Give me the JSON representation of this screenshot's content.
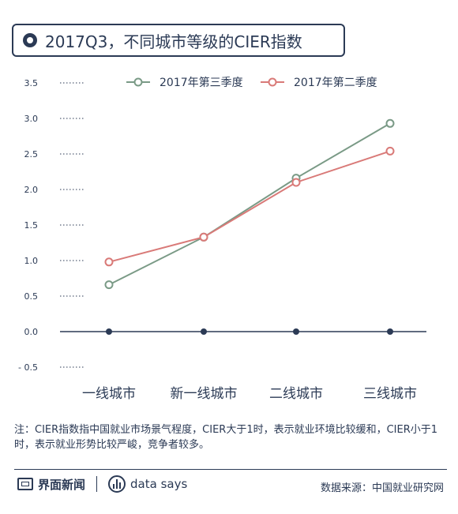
{
  "header": {
    "title": "2017Q3，不同城市等级的CIER指数"
  },
  "chart_data": {
    "type": "line",
    "categories": [
      "一线城市",
      "新一线城市",
      "二线城市",
      "三线城市"
    ],
    "series": [
      {
        "name": "2017年第三季度",
        "color": "#7a9a86",
        "values": [
          0.66,
          1.33,
          2.16,
          2.93
        ]
      },
      {
        "name": "2017年第二季度",
        "color": "#d97a78",
        "values": [
          0.98,
          1.33,
          2.1,
          2.54
        ]
      }
    ],
    "y_ticks": [
      "3.5",
      "3.0",
      "2.5",
      "2.0",
      "1.5",
      "1.0",
      "0.5",
      "0.0",
      "- 0.5"
    ],
    "y_tick_values": [
      3.5,
      3.0,
      2.5,
      2.0,
      1.5,
      1.0,
      0.5,
      0.0,
      -0.5
    ],
    "ylim": [
      -0.5,
      3.5
    ],
    "axis_color": "#2b3a55",
    "legend_position": "top"
  },
  "note": "注：CIER指数指中国就业市场景气程度，CIER大于1时，表示就业环境比较缓和，CIER小于1时，表示就业形势比较严峻，竞争者较多。",
  "footer": {
    "brand": "界面新闻",
    "brand_icon": "jiemian-logo-icon",
    "sub_brand": "data says",
    "sub_brand_icon": "data-says-logo-icon",
    "source": "数据来源：中国就业研究网"
  }
}
